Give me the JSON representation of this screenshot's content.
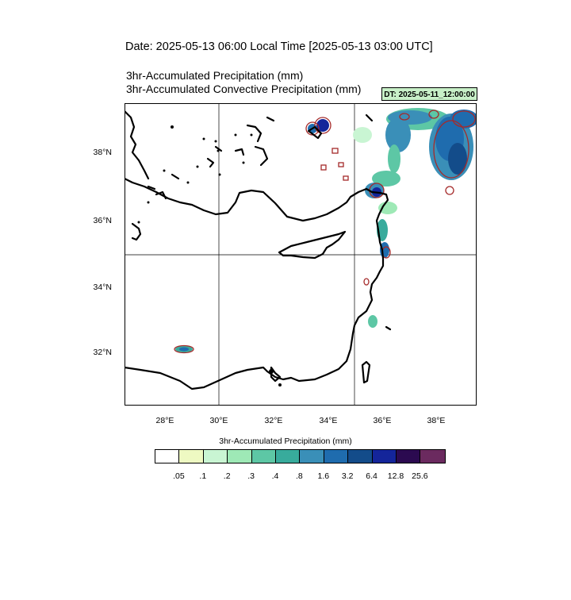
{
  "header": {
    "date_line": "Date: 2025-05-13  06:00 Local Time [2025-05-13  03:00 UTC]",
    "title_line1": "3hr-Accumulated Precipitation   (mm)",
    "title_line2": "3hr-Accumulated Convective Precipitation   (mm)",
    "dt_box": "DT: 2025-05-11_12:00:00"
  },
  "map": {
    "y_ticks": [
      "38°N",
      "36°N",
      "34°N",
      "32°N"
    ],
    "x_ticks": [
      "28°E",
      "30°E",
      "32°E",
      "34°E",
      "36°E",
      "38°E"
    ],
    "gridlines": [
      "30°E",
      "35°E",
      "35°N"
    ]
  },
  "colorbar": {
    "title": "3hr-Accumulated Precipitation   (mm)",
    "colors": [
      "#ffffff",
      "#eef9c2",
      "#c9f5d3",
      "#9ee9b6",
      "#5dc7a5",
      "#38ab9c",
      "#3a8fb8",
      "#1f6cae",
      "#134c8a",
      "#14259a",
      "#2b0a50",
      "#6b2a5f"
    ],
    "labels": [
      ".05",
      ".1",
      ".2",
      ".3",
      ".4",
      ".8",
      "1.6",
      "3.2",
      "6.4",
      "12.8",
      "25.6"
    ]
  }
}
